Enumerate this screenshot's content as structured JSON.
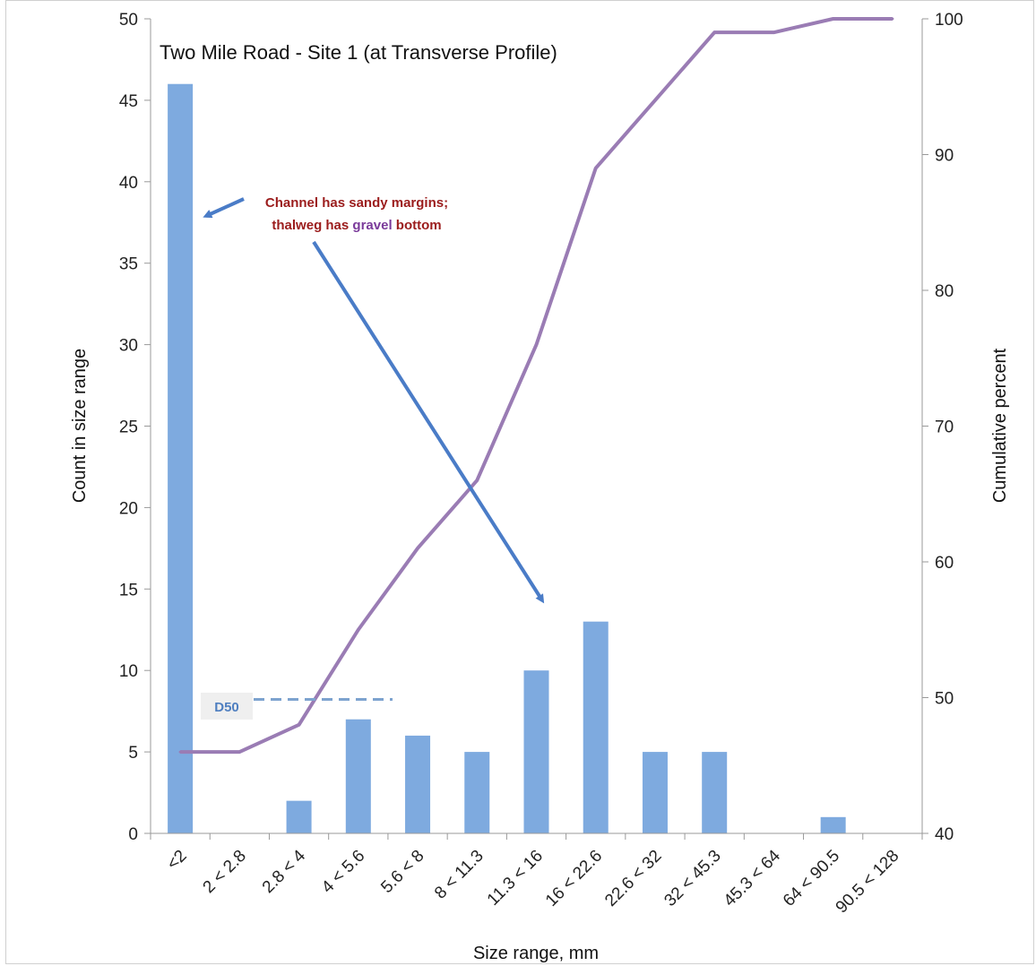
{
  "chart_data": {
    "type": "bar",
    "title": "Two Mile Road - Site 1 (at Transverse Profile)",
    "xlabel": "Size range, mm",
    "ylabel": "Count in size range",
    "y2label": "Cumulative percent",
    "categories": [
      "<2",
      "2 < 2.8",
      "2.8 < 4",
      "4 < 5.6",
      "5.6 < 8",
      "8 < 11.3",
      "11.3 < 16",
      "16 < 22.6",
      "22.6 < 32",
      "32 < 45.3",
      "45.3 < 64",
      "64 < 90.5",
      "90.5 < 128"
    ],
    "series": [
      {
        "type": "bar",
        "axis": "left",
        "values": [
          46,
          0,
          2,
          7,
          6,
          5,
          10,
          13,
          5,
          5,
          0,
          1,
          0
        ],
        "color": "#7eaadf"
      },
      {
        "type": "line",
        "axis": "right",
        "values": [
          46,
          46,
          48,
          55,
          61,
          66,
          76,
          89,
          94,
          99,
          99,
          100,
          100
        ],
        "color": "#9a7cb4"
      }
    ],
    "ylim": [
      0,
      50
    ],
    "yticks": [
      "0",
      "5",
      "10",
      "15",
      "20",
      "25",
      "30",
      "35",
      "40",
      "45",
      "50"
    ],
    "y2lim": [
      40,
      100
    ],
    "y2ticks": [
      "40",
      "50",
      "60",
      "70",
      "80",
      "90",
      "100"
    ],
    "grid": false,
    "annotations": {
      "note_line1": "Channel has sandy margins;",
      "note_line2_a": "thalweg has ",
      "note_line2_b": "gravel",
      "note_line2_c": " bottom",
      "d50_label": "D50",
      "d50_value": 8
    }
  }
}
